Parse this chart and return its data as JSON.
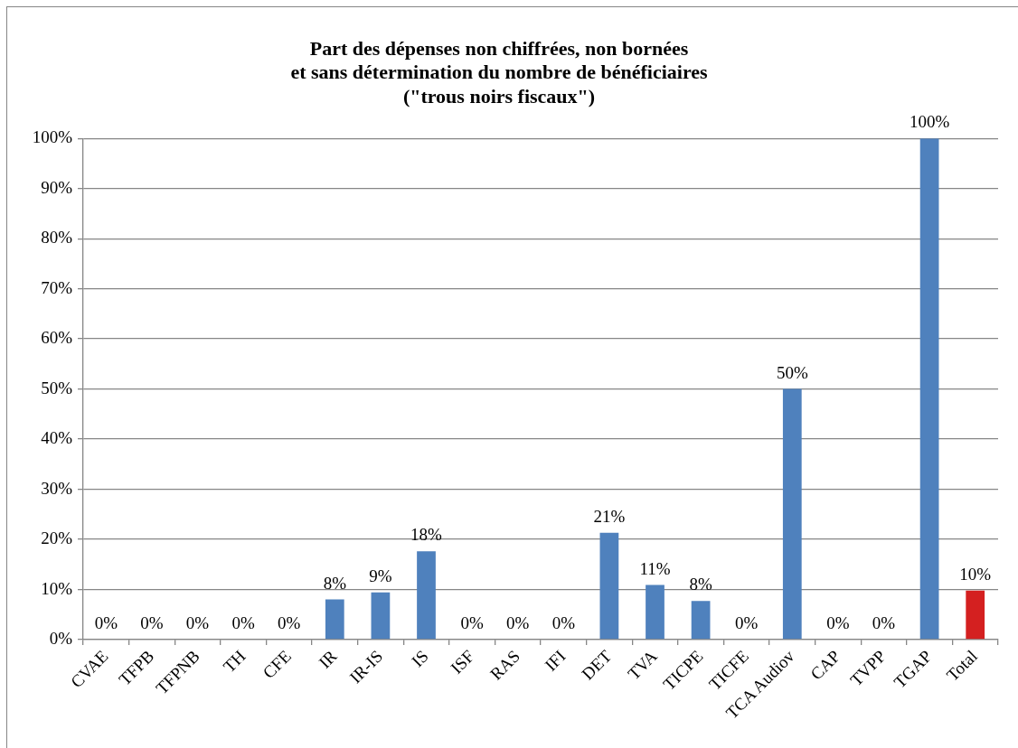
{
  "chart_data": {
    "type": "bar",
    "title": "Part des dépenses non chiffrées, non bornées\net sans détermination du nombre de bénéficiaires\n(\"trous noirs fiscaux\")",
    "categories": [
      "CVAE",
      "TFPB",
      "TFPNB",
      "TH",
      "CFE",
      "IR",
      "IR-IS",
      "IS",
      "ISF",
      "RAS",
      "IFI",
      "DET",
      "TVA",
      "TICPE",
      "TICFE",
      "TCA Audiov",
      "CAP",
      "TVPP",
      "TGAP",
      "Total"
    ],
    "values": [
      0,
      0,
      0,
      0,
      0,
      8,
      9.4,
      17.6,
      0,
      0,
      0,
      21.3,
      10.9,
      7.7,
      0,
      50,
      0,
      0,
      100,
      9.8
    ],
    "colors": [
      "#4f81bd",
      "#4f81bd",
      "#4f81bd",
      "#4f81bd",
      "#4f81bd",
      "#4f81bd",
      "#4f81bd",
      "#4f81bd",
      "#4f81bd",
      "#4f81bd",
      "#4f81bd",
      "#4f81bd",
      "#4f81bd",
      "#4f81bd",
      "#4f81bd",
      "#4f81bd",
      "#4f81bd",
      "#4f81bd",
      "#4f81bd",
      "#d42020"
    ],
    "value_labels": [
      "0%",
      "0%",
      "0%",
      "0%",
      "0%",
      "8%",
      "9%",
      "18%",
      "0%",
      "0%",
      "0%",
      "21%",
      "11%",
      "8%",
      "0%",
      "50%",
      "0%",
      "0%",
      "100%",
      "10%"
    ],
    "ylim": [
      0,
      100
    ],
    "yticks": [
      {
        "value": 0,
        "label": "0%"
      },
      {
        "value": 10,
        "label": "10%"
      },
      {
        "value": 20,
        "label": "20%"
      },
      {
        "value": 30,
        "label": "30%"
      },
      {
        "value": 40,
        "label": "40%"
      },
      {
        "value": 50,
        "label": "50%"
      },
      {
        "value": 60,
        "label": "60%"
      },
      {
        "value": 70,
        "label": "70%"
      },
      {
        "value": 80,
        "label": "80%"
      },
      {
        "value": 90,
        "label": "90%"
      },
      {
        "value": 100,
        "label": "100%"
      }
    ],
    "grid": "y"
  }
}
